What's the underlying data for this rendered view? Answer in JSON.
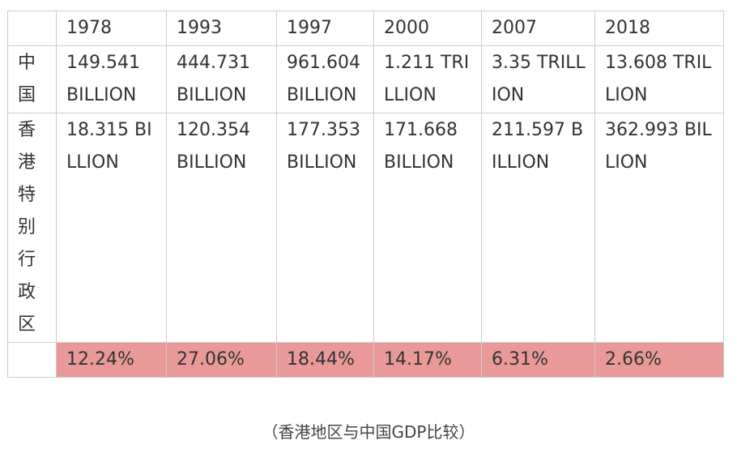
{
  "table": {
    "header": [
      "",
      "1978",
      "1993",
      "1997",
      "2000",
      "2007",
      "2018"
    ],
    "rows": [
      {
        "label": "中国",
        "cells": [
          "149.541 BILLION",
          "444.731 BILLION",
          "961.604 BILLION",
          "1.211 TRILLION",
          "3.35 TRILLION",
          "13.608 TRILLION"
        ]
      },
      {
        "label": "香港特别行政区",
        "cells": [
          "18.315 BILLION",
          "120.354 BILLION",
          "177.353 BILLION",
          "171.668 BILLION",
          "211.597 BILLION",
          "362.993 BILLION"
        ]
      }
    ],
    "ratio": {
      "label": "",
      "cells": [
        "12.24%",
        "27.06%",
        "18.44%",
        "14.17%",
        "6.31%",
        "2.66%"
      ],
      "highlight_color": "#ea9999"
    }
  },
  "caption": "（香港地区与中国GDP比较）"
}
